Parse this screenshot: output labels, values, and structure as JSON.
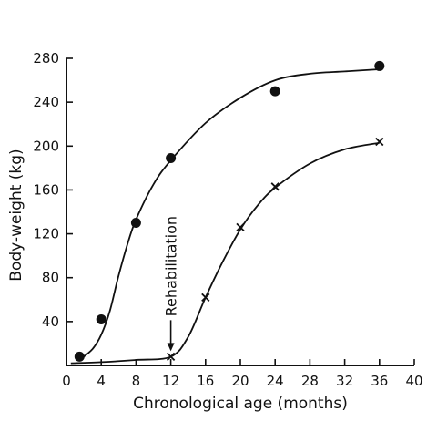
{
  "chart_data": {
    "type": "line",
    "title": "",
    "xlabel": "Chronological age (months)",
    "ylabel": "Body-weight (kg)",
    "xlim": [
      0,
      40
    ],
    "ylim": [
      0,
      280
    ],
    "xticks": [
      0,
      4,
      8,
      12,
      16,
      20,
      24,
      28,
      32,
      36,
      40
    ],
    "yticks": [
      40,
      80,
      120,
      160,
      200,
      240,
      280
    ],
    "grid": false,
    "legend": "none",
    "series": [
      {
        "marker": "circle",
        "points": [
          {
            "x": 1.5,
            "y": 8
          },
          {
            "x": 4,
            "y": 42
          },
          {
            "x": 8,
            "y": 130
          },
          {
            "x": 12,
            "y": 189
          },
          {
            "x": 24,
            "y": 250
          },
          {
            "x": 36,
            "y": 273
          }
        ],
        "curve": [
          {
            "x": 1.5,
            "y": 5
          },
          {
            "x": 3,
            "y": 15
          },
          {
            "x": 4,
            "y": 28
          },
          {
            "x": 5,
            "y": 50
          },
          {
            "x": 6,
            "y": 82
          },
          {
            "x": 7,
            "y": 110
          },
          {
            "x": 8,
            "y": 133
          },
          {
            "x": 10,
            "y": 165
          },
          {
            "x": 12,
            "y": 187
          },
          {
            "x": 16,
            "y": 221
          },
          {
            "x": 20,
            "y": 244
          },
          {
            "x": 24,
            "y": 260
          },
          {
            "x": 28,
            "y": 266
          },
          {
            "x": 32,
            "y": 268
          },
          {
            "x": 36,
            "y": 270
          }
        ]
      },
      {
        "marker": "cross",
        "points": [
          {
            "x": 12,
            "y": 8
          },
          {
            "x": 16,
            "y": 62
          },
          {
            "x": 20,
            "y": 126
          },
          {
            "x": 24,
            "y": 163
          },
          {
            "x": 36,
            "y": 204
          }
        ],
        "curve": [
          {
            "x": 0.5,
            "y": 2
          },
          {
            "x": 4,
            "y": 3
          },
          {
            "x": 8,
            "y": 5
          },
          {
            "x": 12,
            "y": 8
          },
          {
            "x": 14,
            "y": 26
          },
          {
            "x": 16,
            "y": 62
          },
          {
            "x": 18,
            "y": 95
          },
          {
            "x": 20,
            "y": 124
          },
          {
            "x": 22,
            "y": 146
          },
          {
            "x": 24,
            "y": 162
          },
          {
            "x": 28,
            "y": 184
          },
          {
            "x": 32,
            "y": 197
          },
          {
            "x": 36,
            "y": 203
          }
        ]
      }
    ],
    "annotations": [
      {
        "text": "Rehabilitation",
        "x": 12,
        "y": 8,
        "type": "arrow"
      }
    ]
  },
  "colors": {
    "ink": "#111111",
    "background": "#ffffff"
  }
}
